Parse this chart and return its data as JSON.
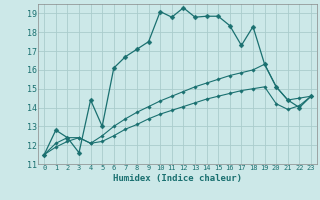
{
  "xlabel": "Humidex (Indice chaleur)",
  "bg_color": "#cce8e8",
  "grid_color": "#aacccc",
  "line_color": "#1a7070",
  "xlim": [
    -0.5,
    23.5
  ],
  "ylim": [
    11,
    19.5
  ],
  "xticks": [
    0,
    1,
    2,
    3,
    4,
    5,
    6,
    7,
    8,
    9,
    10,
    11,
    12,
    13,
    14,
    15,
    16,
    17,
    18,
    19,
    20,
    21,
    22,
    23
  ],
  "yticks": [
    11,
    12,
    13,
    14,
    15,
    16,
    17,
    18,
    19
  ],
  "line1_x": [
    0,
    1,
    2,
    3,
    4,
    5,
    6,
    7,
    8,
    9,
    10,
    11,
    12,
    13,
    14,
    15,
    16,
    17,
    18,
    19,
    20,
    21,
    22,
    23
  ],
  "line1_y": [
    11.5,
    12.8,
    12.4,
    11.6,
    14.4,
    13.0,
    16.1,
    16.7,
    17.1,
    17.5,
    19.1,
    18.8,
    19.3,
    18.8,
    18.85,
    18.85,
    18.35,
    17.3,
    18.3,
    16.3,
    15.1,
    14.4,
    14.0,
    14.6
  ],
  "line2_x": [
    0,
    1,
    2,
    3,
    4,
    5,
    6,
    7,
    8,
    9,
    10,
    11,
    12,
    13,
    14,
    15,
    16,
    17,
    18,
    19,
    20,
    21,
    22,
    23
  ],
  "line2_y": [
    11.5,
    12.1,
    12.4,
    12.4,
    12.1,
    12.5,
    13.0,
    13.4,
    13.75,
    14.05,
    14.35,
    14.6,
    14.85,
    15.1,
    15.3,
    15.5,
    15.7,
    15.85,
    16.0,
    16.3,
    15.1,
    14.4,
    14.5,
    14.6
  ],
  "line3_x": [
    0,
    1,
    2,
    3,
    4,
    5,
    6,
    7,
    8,
    9,
    10,
    11,
    12,
    13,
    14,
    15,
    16,
    17,
    18,
    19,
    20,
    21,
    22,
    23
  ],
  "line3_y": [
    11.5,
    11.9,
    12.2,
    12.4,
    12.1,
    12.2,
    12.5,
    12.85,
    13.1,
    13.4,
    13.65,
    13.85,
    14.05,
    14.25,
    14.45,
    14.6,
    14.75,
    14.9,
    15.0,
    15.1,
    14.2,
    13.9,
    14.1,
    14.6
  ]
}
